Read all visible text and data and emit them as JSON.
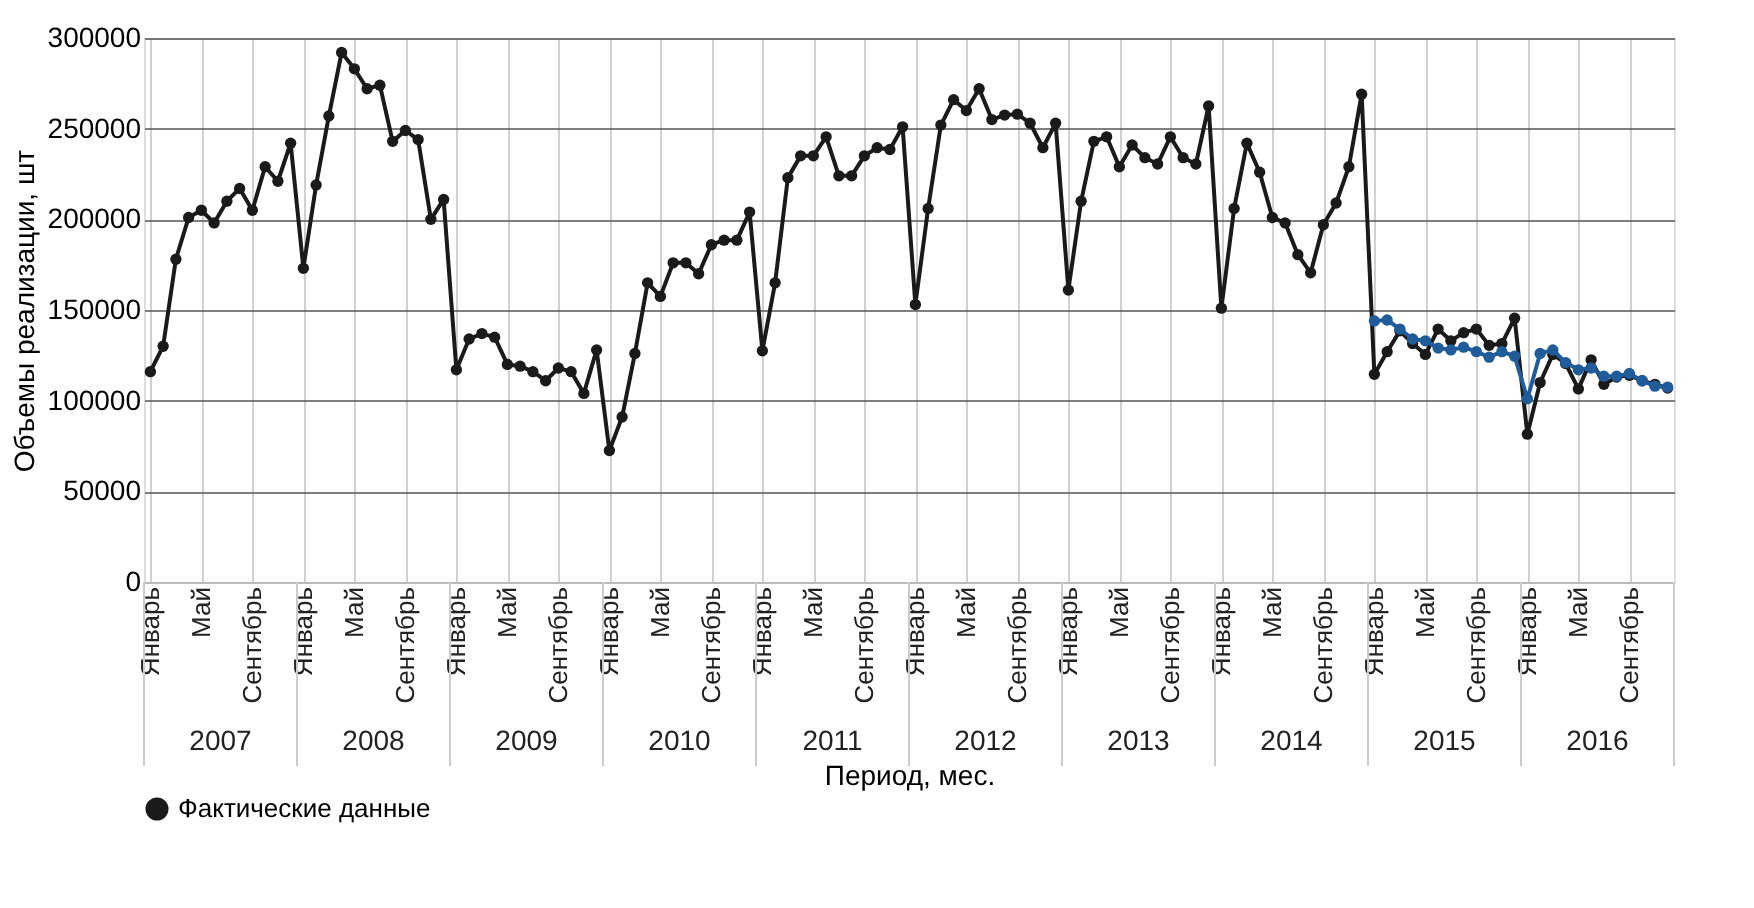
{
  "chart_data": {
    "type": "line",
    "ylabel": "Объемы реализации, шт",
    "xlabel": "Период, мес.",
    "categories": [
      "Январь",
      null,
      null,
      null,
      "Май",
      null,
      null,
      null,
      "Сентябрь",
      null,
      null,
      null,
      "Январь",
      null,
      null,
      null,
      "Май",
      null,
      null,
      null,
      "Сентябрь",
      null,
      null,
      null,
      "Январь",
      null,
      null,
      null,
      "Май",
      null,
      null,
      null,
      "Сентябрь",
      null,
      null,
      null,
      "Январь",
      null,
      null,
      null,
      "Май",
      null,
      null,
      null,
      "Сентябрь",
      null,
      null,
      null,
      "Январь",
      null,
      null,
      null,
      "Май",
      null,
      null,
      null,
      "Сентябрь",
      null,
      null,
      null,
      "Январь",
      null,
      null,
      null,
      "Май",
      null,
      null,
      null,
      "Сентябрь",
      null,
      null,
      null,
      "Январь",
      null,
      null,
      null,
      "Май",
      null,
      null,
      null,
      "Сентябрь",
      null,
      null,
      null,
      "Январь",
      null,
      null,
      null,
      "Май",
      null,
      null,
      null,
      "Сентябрь",
      null,
      null,
      null,
      "Январь",
      null,
      null,
      null,
      "Май",
      null,
      null,
      null,
      "Сентябрь",
      null,
      null,
      null,
      "Январь",
      null,
      null,
      null,
      "Май",
      null,
      null,
      null,
      "Сентябрь",
      null,
      null,
      null
    ],
    "annotations": [
      "2007",
      "2008",
      "2009",
      "2010",
      "2011",
      "2012",
      "2013",
      "2014",
      "2015",
      "2016"
    ],
    "series": [
      {
        "name": "Фактические данные",
        "color": "#1a1a1a",
        "values": [
          116000,
          130000,
          178000,
          201000,
          205000,
          198000,
          210000,
          217000,
          205000,
          229000,
          221000,
          242000,
          173000,
          219000,
          257000,
          292000,
          283000,
          272000,
          274000,
          243000,
          249000,
          244000,
          200000,
          211000,
          117000,
          134000,
          137000,
          135000,
          120000,
          119000,
          116000,
          111000,
          118000,
          116000,
          104000,
          128000,
          72500,
          91000,
          126000,
          165000,
          157500,
          176000,
          176000,
          170000,
          186000,
          188500,
          188500,
          204000,
          127500,
          165000,
          223000,
          235000,
          235000,
          245500,
          224000,
          224000,
          235000,
          239500,
          238500,
          251000,
          153000,
          206000,
          252000,
          266000,
          260000,
          272000,
          255000,
          257500,
          258000,
          253000,
          239500,
          253000,
          161000,
          210000,
          243000,
          245500,
          229000,
          241000,
          234000,
          230500,
          245500,
          234000,
          230500,
          262500,
          151000,
          206000,
          242000,
          226000,
          201000,
          198000,
          180500,
          170500,
          197000,
          209000,
          229000,
          269000,
          114500,
          127000,
          138500,
          131500,
          125500,
          139500,
          133000,
          137500,
          139500,
          130500,
          131500,
          145500,
          81500,
          110000,
          125500,
          120500,
          106500,
          122500,
          109000,
          113000,
          114000,
          111000,
          109000,
          107000
        ]
      },
      {
        "color": "#1f5c99",
        "values": [
          null,
          null,
          null,
          null,
          null,
          null,
          null,
          null,
          null,
          null,
          null,
          null,
          null,
          null,
          null,
          null,
          null,
          null,
          null,
          null,
          null,
          null,
          null,
          null,
          null,
          null,
          null,
          null,
          null,
          null,
          null,
          null,
          null,
          null,
          null,
          null,
          null,
          null,
          null,
          null,
          null,
          null,
          null,
          null,
          null,
          null,
          null,
          null,
          null,
          null,
          null,
          null,
          null,
          null,
          null,
          null,
          null,
          null,
          null,
          null,
          null,
          null,
          null,
          null,
          null,
          null,
          null,
          null,
          null,
          null,
          null,
          null,
          null,
          null,
          null,
          null,
          null,
          null,
          null,
          null,
          null,
          null,
          null,
          null,
          null,
          null,
          null,
          null,
          null,
          null,
          null,
          null,
          null,
          null,
          null,
          null,
          144000,
          144500,
          139500,
          134000,
          133000,
          129000,
          128000,
          129500,
          127000,
          124000,
          127000,
          124500,
          101000,
          126000,
          128000,
          121000,
          117000,
          118000,
          113500,
          113500,
          115000,
          111000,
          108000,
          107500
        ]
      }
    ],
    "ylim": [
      0,
      300000
    ],
    "yticks": [
      0,
      50000,
      100000,
      150000,
      200000,
      250000,
      300000
    ],
    "grid": true,
    "legend": "bottom left",
    "marker": "circle",
    "line_style": "solid"
  }
}
